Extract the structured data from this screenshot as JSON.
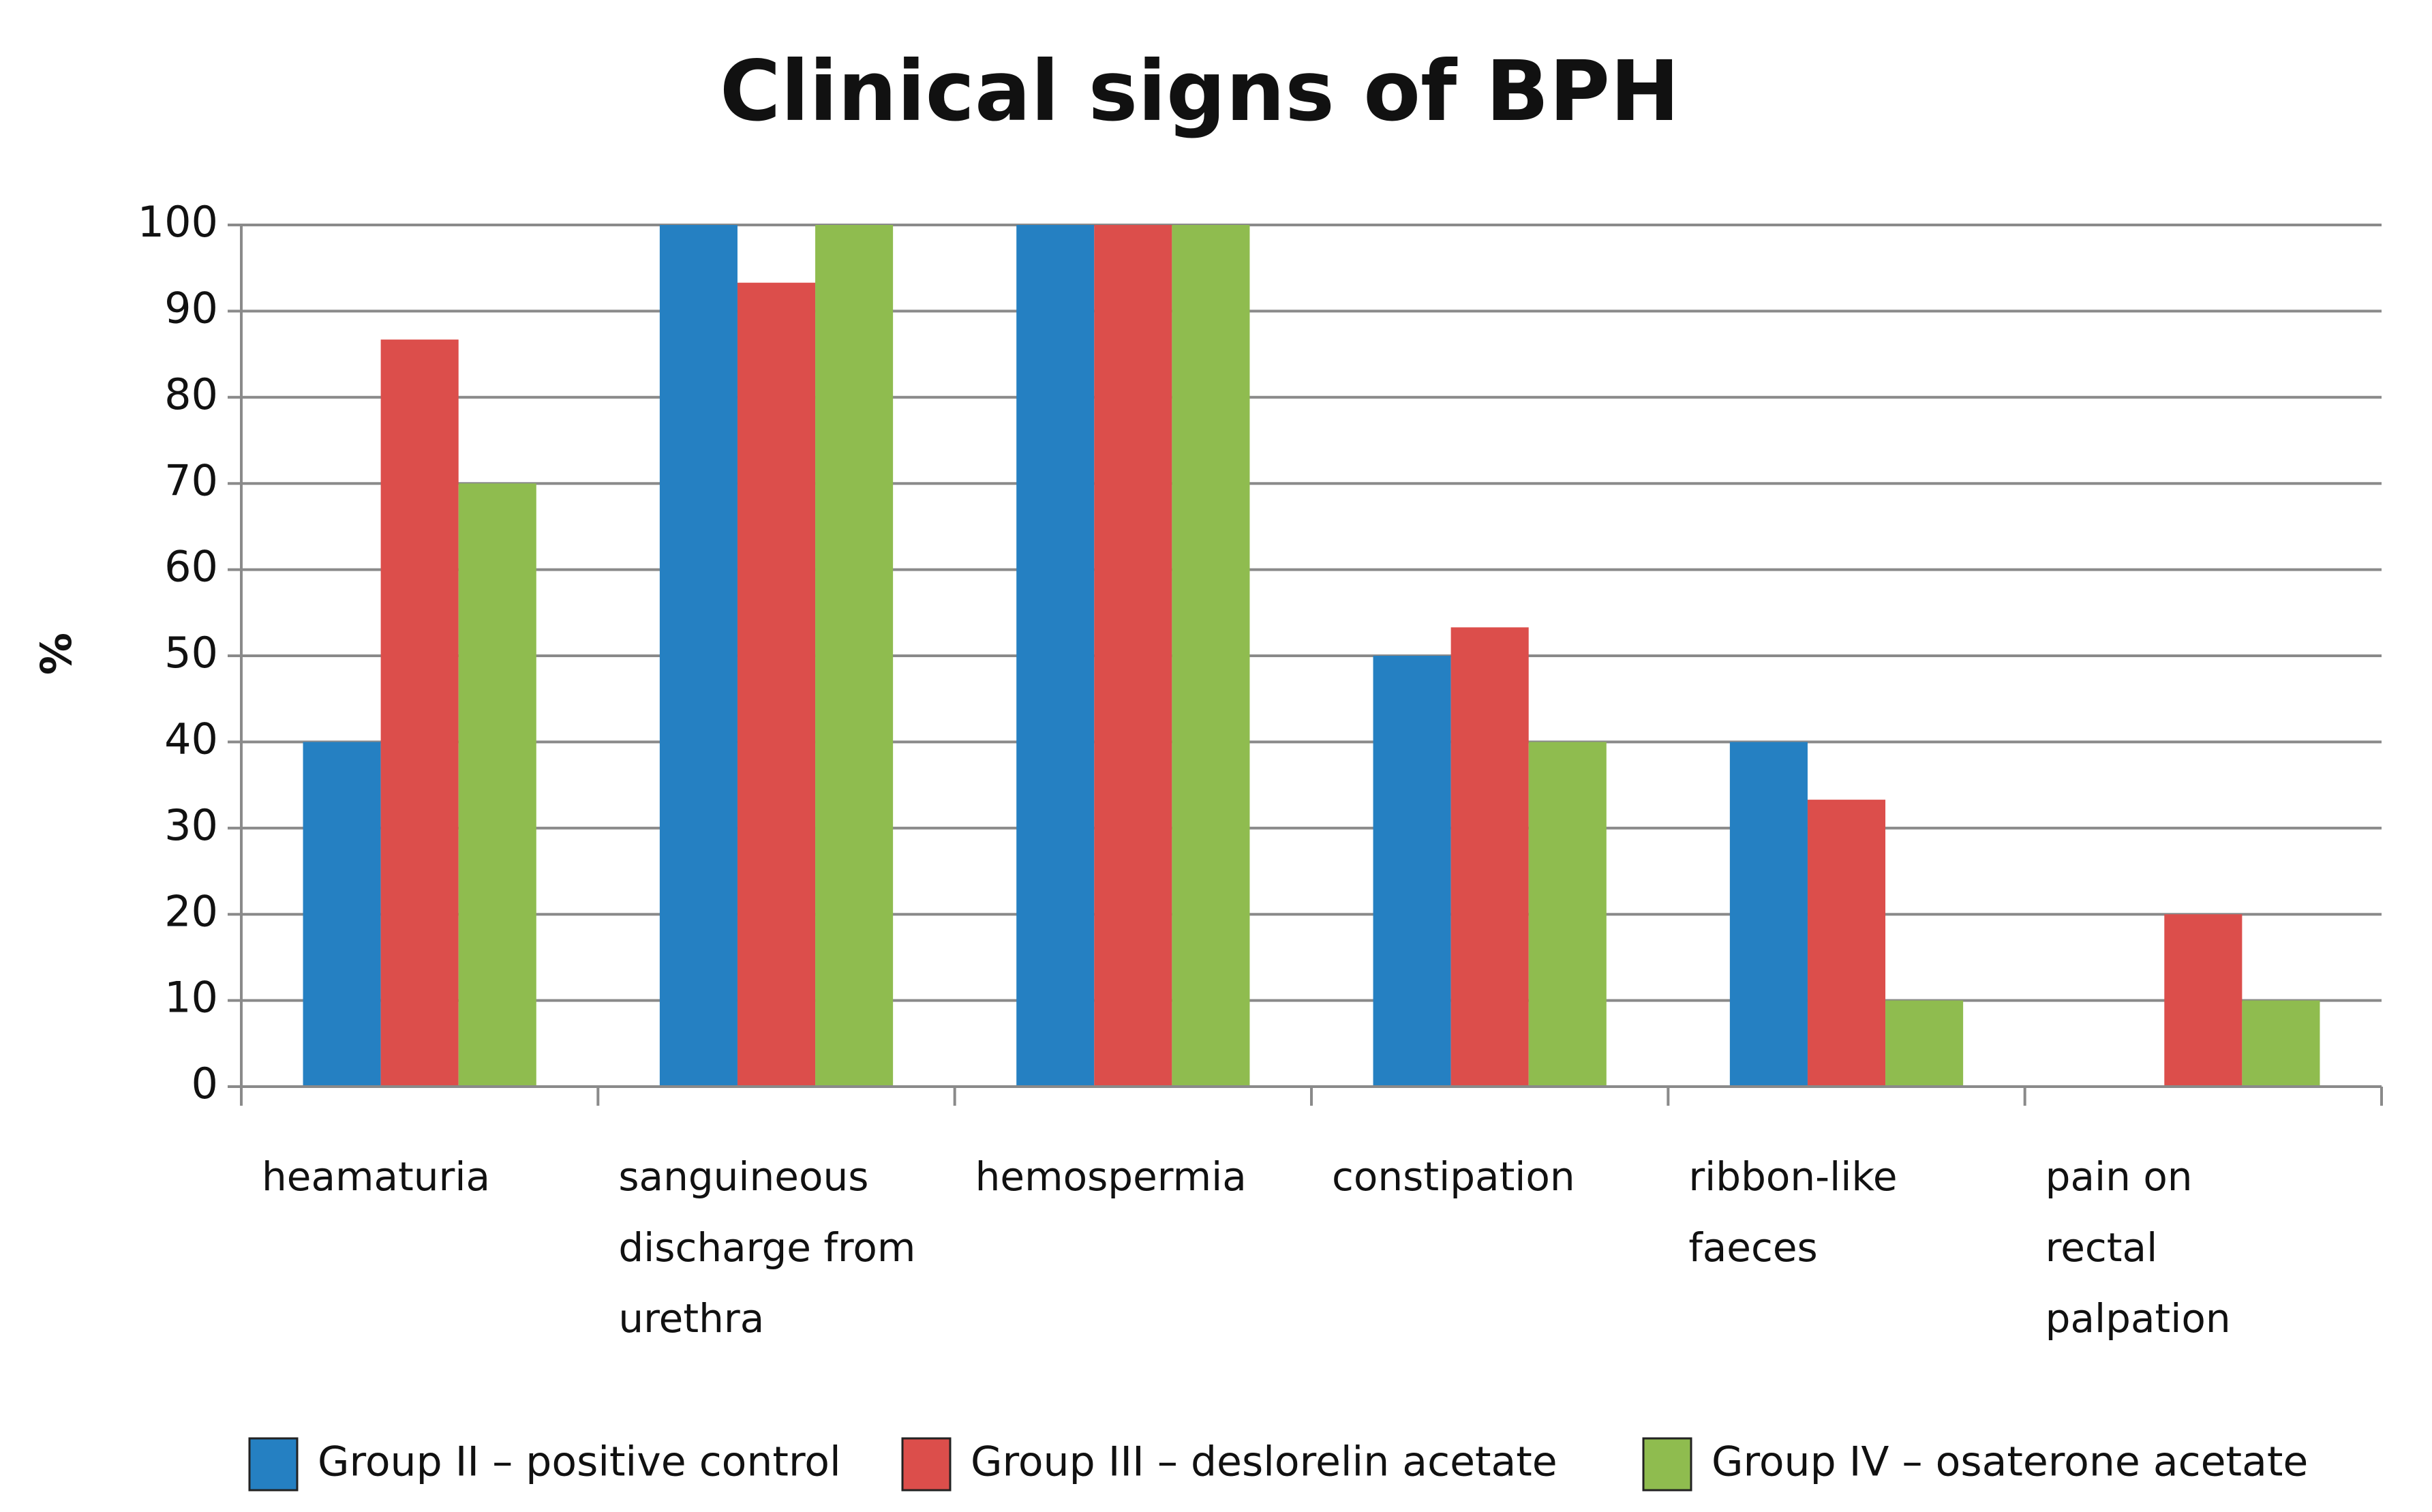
{
  "chart_data": {
    "type": "bar",
    "title": "Clinical signs of BPH",
    "y_label": "%",
    "categories": [
      "heamaturia",
      "sanguineous discharge from urethra",
      "hemospermia",
      "constipation",
      "ribbon-like faeces",
      "pain on rectal palpation"
    ],
    "series": [
      {
        "name": "Group II – positive control",
        "color": "#2580c2",
        "values": [
          40,
          100,
          100,
          50,
          40,
          0
        ]
      },
      {
        "name": "Group III – deslorelin acetate",
        "color": "#dc4e4b",
        "values": [
          86.7,
          93.3,
          100,
          53.3,
          33.3,
          20
        ]
      },
      {
        "name": "Group IV – osaterone acetate",
        "color": "#8fbc4f",
        "values": [
          70,
          100,
          100,
          40,
          10,
          10
        ]
      }
    ],
    "ylim": [
      0,
      100
    ],
    "yticks": [
      0,
      10,
      20,
      30,
      40,
      50,
      60,
      70,
      80,
      90,
      100
    ],
    "grid": true,
    "legend": "bottom"
  }
}
